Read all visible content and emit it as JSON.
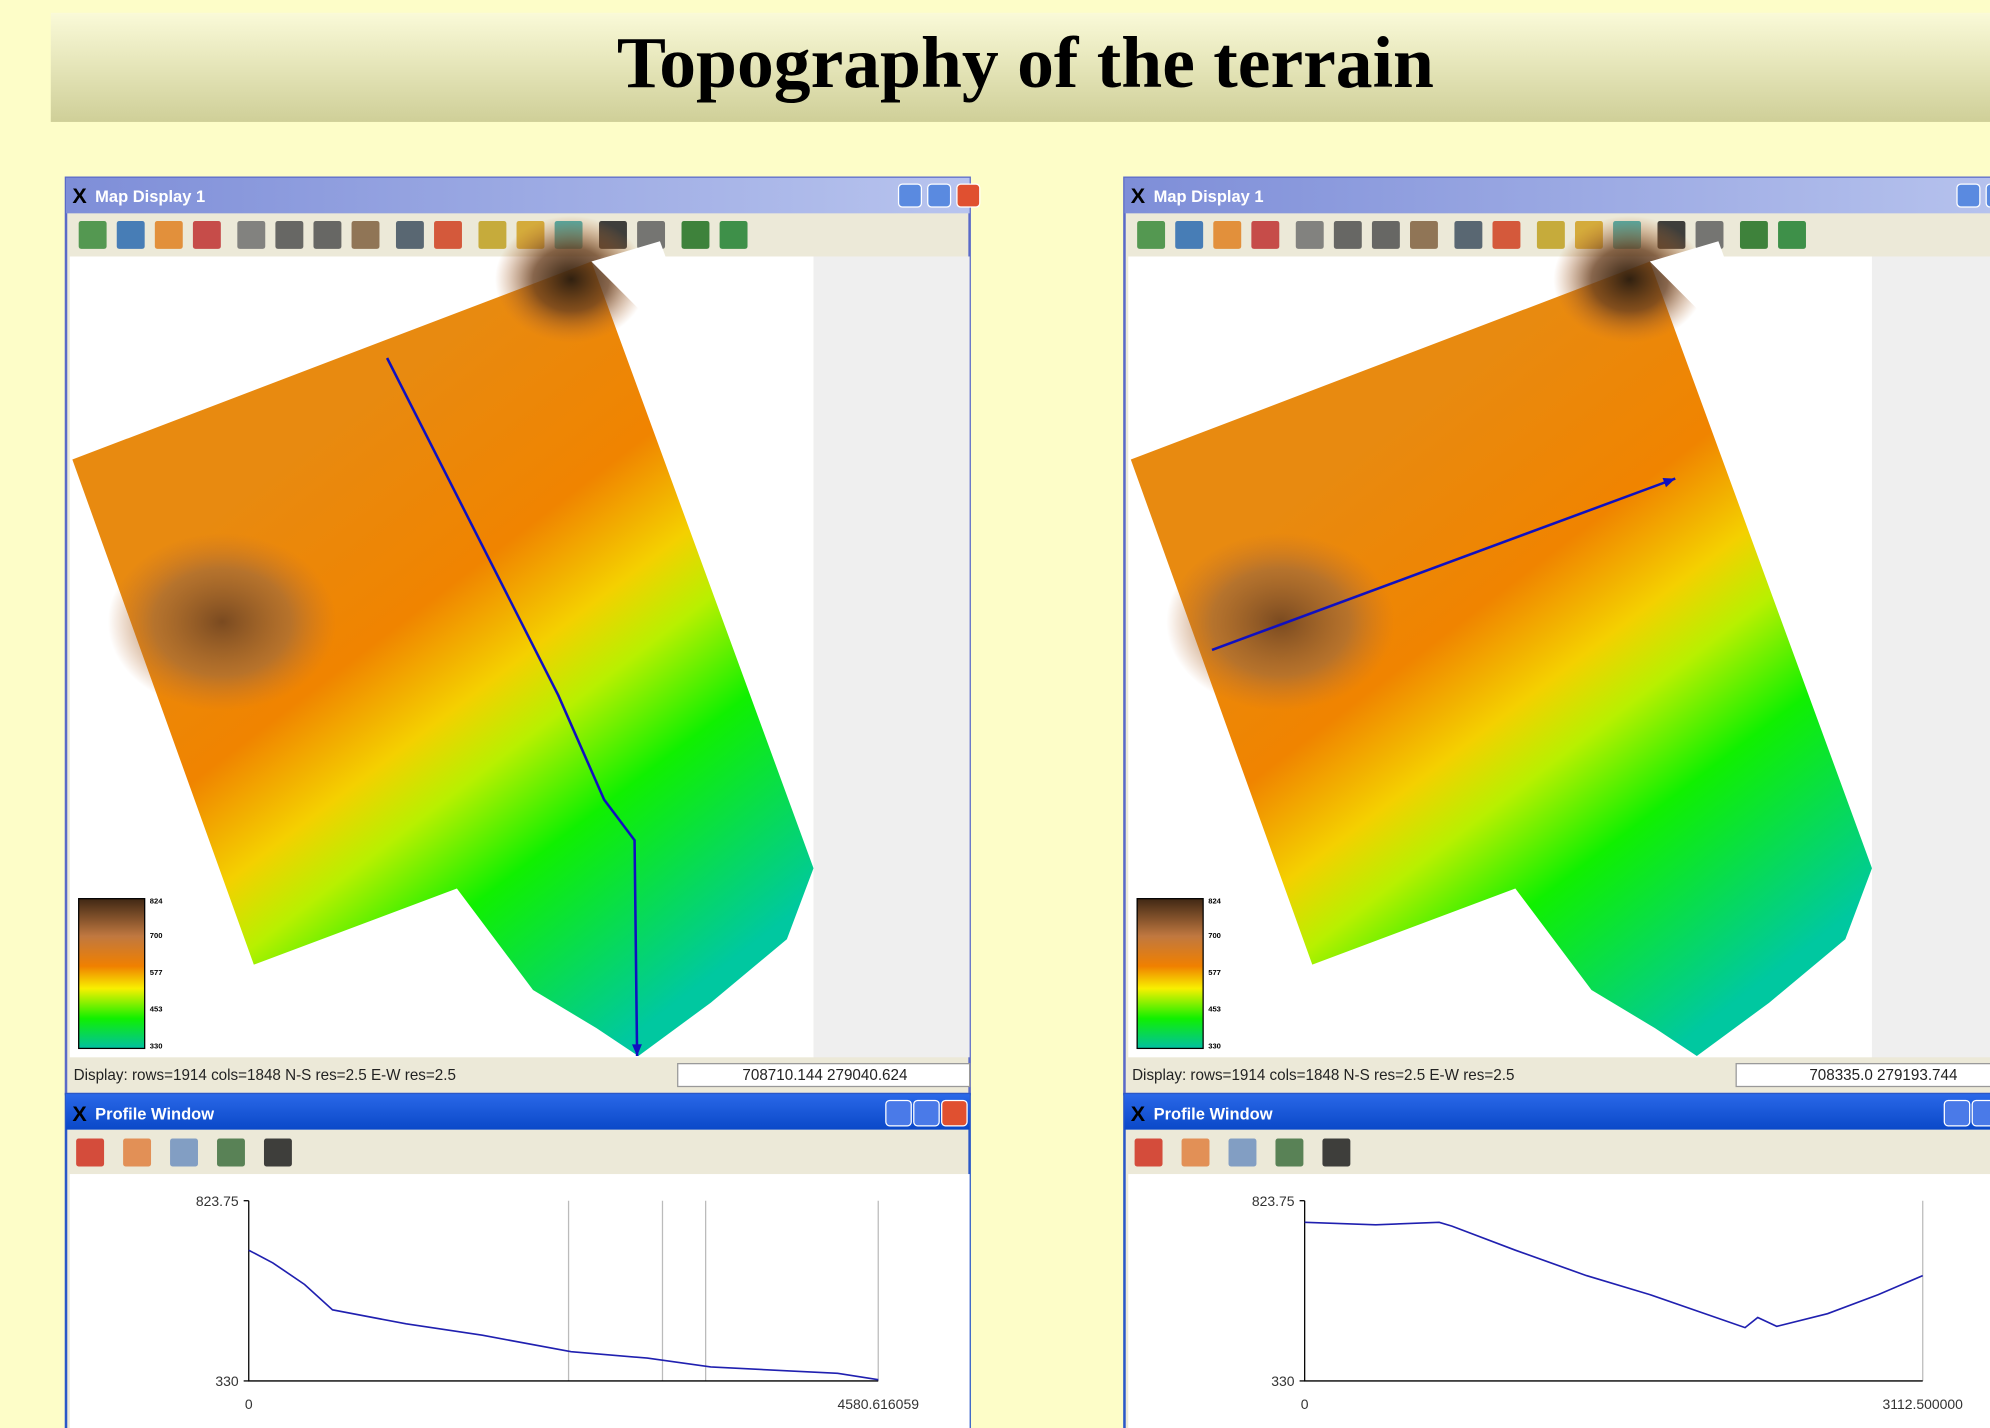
{
  "title": "Topography of the terrain",
  "panels": [
    {
      "map_window": {
        "title": "Map Display 1",
        "legend": [
          "824",
          "700",
          "577",
          "453",
          "330"
        ],
        "status": "Display: rows=1914 cols=1848 N-S res=2.5 E-W res=2.5",
        "coordinates": "708710.144 279040.624"
      },
      "profile_window": {
        "title": "Profile Window",
        "y_labels": [
          "823.75",
          "330"
        ],
        "x_labels": [
          "0",
          "4580.616059"
        ]
      }
    },
    {
      "map_window": {
        "title": "Map Display 1",
        "legend": [
          "824",
          "700",
          "577",
          "453",
          "330"
        ],
        "status": "Display: rows=1914 cols=1848 N-S res=2.5 E-W res=2.5",
        "coordinates": "708335.0 279193.744"
      },
      "profile_window": {
        "title": "Profile Window",
        "y_labels": [
          "823.75",
          "330"
        ],
        "x_labels": [
          "0",
          "3112.500000"
        ]
      }
    }
  ]
}
